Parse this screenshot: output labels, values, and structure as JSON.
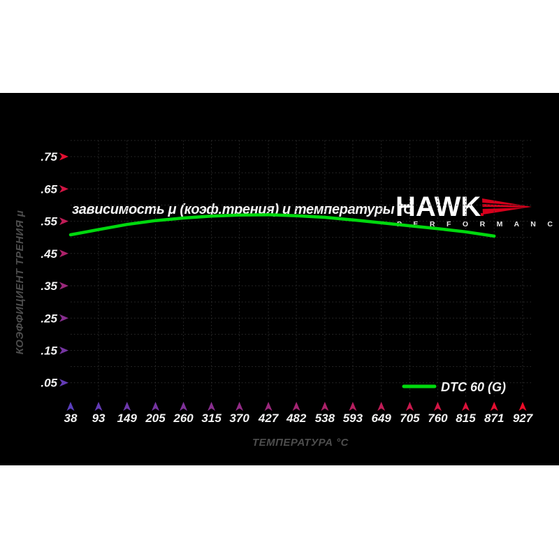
{
  "header": {
    "title": "зависимость μ (коэф.трения) и температуры °C"
  },
  "logo": {
    "brand": "HAWK",
    "subbrand": "P E R F O R M A N C E",
    "wing_color": "#d6001c"
  },
  "chart_data": {
    "type": "line",
    "title": "зависимость μ (коэф.трения) и температуры °C",
    "xlabel": "ТЕМПЕРАТУРА °C",
    "ylabel": "КОЭФФИЦИЕНТ ТРЕНИЯ μ",
    "x_ticks": [
      38,
      93,
      149,
      205,
      260,
      315,
      370,
      427,
      482,
      538,
      593,
      649,
      705,
      760,
      815,
      871,
      927
    ],
    "x_tick_labels": [
      "38",
      "93",
      "149",
      "205",
      "260",
      "315",
      "370",
      "427",
      "482",
      "538",
      "593",
      "649",
      "705",
      "760",
      "815",
      "871",
      "927"
    ],
    "y_ticks": [
      0.75,
      0.65,
      0.55,
      0.45,
      0.35,
      0.25,
      0.15,
      0.05
    ],
    "y_tick_labels": [
      ".75",
      ".65",
      ".55",
      ".45",
      ".35",
      ".25",
      ".15",
      ".05"
    ],
    "xlim": [
      38,
      942
    ],
    "ylim": [
      0,
      0.8
    ],
    "grid": "dotted",
    "grid_color": "#2d2d2d",
    "background": "#000000",
    "axis_gradient_low": "#5a3ebe",
    "axis_gradient_high": "#ee0c28",
    "legend": {
      "label": "DTC 60 (G)",
      "position": "bottom-right"
    },
    "series": [
      {
        "name": "DTC 60 (G)",
        "color": "#00d90e",
        "x": [
          38,
          93,
          149,
          205,
          260,
          315,
          370,
          427,
          482,
          538,
          593,
          649,
          705,
          760,
          815,
          871
        ],
        "values": [
          0.508,
          0.524,
          0.54,
          0.552,
          0.56,
          0.566,
          0.569,
          0.57,
          0.567,
          0.562,
          0.554,
          0.545,
          0.536,
          0.527,
          0.517,
          0.504
        ]
      }
    ]
  }
}
